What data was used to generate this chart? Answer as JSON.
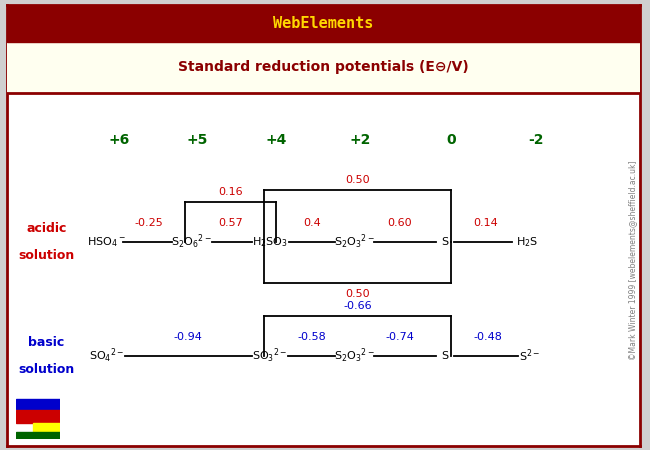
{
  "title_bar": "WebElements",
  "title_bar_bg": "#8B0000",
  "title_bar_color": "#FFD700",
  "subtitle_color": "#8B0000",
  "header_bg": "#FFFFF0",
  "outer_border_color": "#8B0000",
  "fig_bg": "#D0D0D0",
  "oxidation_states": [
    "+6",
    "+5",
    "+4",
    "+2",
    "0",
    "-2"
  ],
  "ox_color": "#006400",
  "watermark": "©Mark Winter 1999 [webelements@sheffield.ac.uk]",
  "watermark_color": "#808080",
  "line_color": "#000000",
  "potential_color_acidic": "#CC0000",
  "potential_color_basic": "#0000CC",
  "species_color": "#000000"
}
